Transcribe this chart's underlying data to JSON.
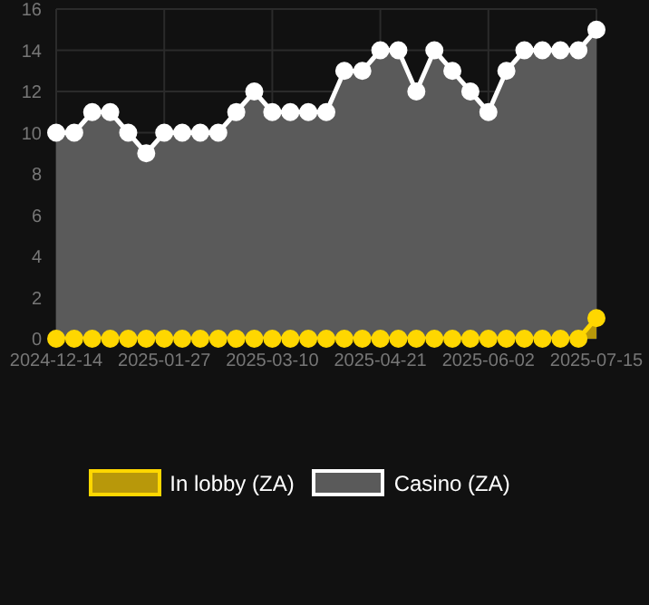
{
  "chart_data": {
    "type": "area",
    "categories": [
      "2024-12-14",
      null,
      null,
      null,
      null,
      null,
      "2025-01-27",
      null,
      null,
      null,
      null,
      null,
      "2025-03-10",
      null,
      null,
      null,
      null,
      null,
      "2025-04-21",
      null,
      null,
      null,
      null,
      null,
      "2025-06-02",
      null,
      null,
      null,
      null,
      null,
      "2025-07-15"
    ],
    "series": [
      {
        "name": "In lobby (ZA)",
        "color": "#ffd700",
        "values": [
          0,
          0,
          0,
          0,
          0,
          0,
          0,
          0,
          0,
          0,
          0,
          0,
          0,
          0,
          0,
          0,
          0,
          0,
          0,
          0,
          0,
          0,
          0,
          0,
          0,
          0,
          0,
          0,
          0,
          0,
          1
        ]
      },
      {
        "name": "Casino (ZA)",
        "color": "#ffffff",
        "values": [
          10,
          10,
          11,
          11,
          10,
          9,
          10,
          10,
          10,
          10,
          11,
          12,
          11,
          11,
          11,
          11,
          13,
          13,
          14,
          14,
          12,
          14,
          13,
          12,
          11,
          13,
          14,
          14,
          14,
          14,
          15
        ]
      }
    ],
    "ylim": [
      0,
      16
    ],
    "yticks": [
      0,
      2,
      4,
      6,
      8,
      10,
      12,
      14,
      16
    ],
    "grid": true,
    "legend": "bottom",
    "marker": "circle"
  }
}
